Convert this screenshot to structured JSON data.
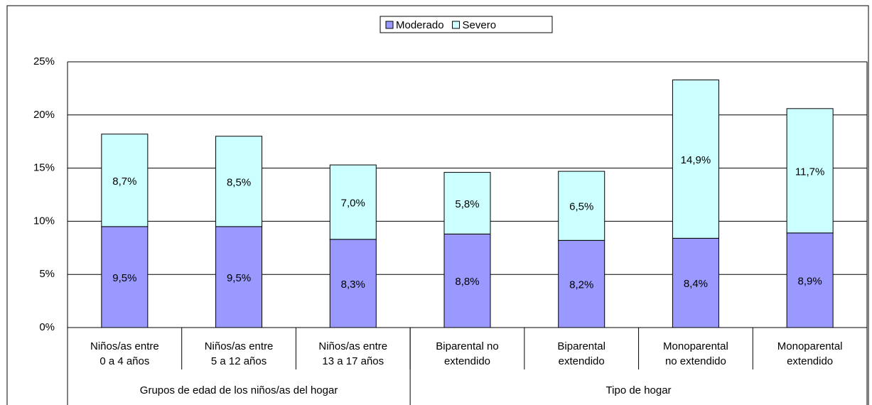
{
  "chart_data": {
    "type": "stacked_bar",
    "categories": [
      "Niños/as entre\n0 a 4 años",
      "Niños/as entre\n5 a 12 años",
      "Niños/as entre\n13 a 17 años",
      "Biparental no\nextendido",
      "Biparental\nextendido",
      "Monoparental\nno extendido",
      "Monoparental\nextendido"
    ],
    "groups": [
      {
        "name": "Grupos de edad de los niños/as del hogar",
        "span": [
          0,
          2
        ]
      },
      {
        "name": "Tipo de hogar",
        "span": [
          3,
          6
        ]
      }
    ],
    "series": [
      {
        "name": "Moderado",
        "color": "#9999ff",
        "values": [
          9.5,
          9.5,
          8.3,
          8.8,
          8.2,
          8.4,
          8.9
        ],
        "value_labels": [
          "9,5%",
          "9,5%",
          "8,3%",
          "8,8%",
          "8,2%",
          "8,4%",
          "8,9%"
        ]
      },
      {
        "name": "Severo",
        "color": "#ccffff",
        "values": [
          8.7,
          8.5,
          7.0,
          5.8,
          6.5,
          14.9,
          11.7
        ],
        "value_labels": [
          "8,7%",
          "8,5%",
          "7,0%",
          "5,8%",
          "6,5%",
          "14,9%",
          "11,7%"
        ]
      }
    ],
    "ylim": [
      0,
      25
    ],
    "yticks": [
      {
        "value": 0,
        "label": "0%"
      },
      {
        "value": 5,
        "label": "5%"
      },
      {
        "value": 10,
        "label": "10%"
      },
      {
        "value": 15,
        "label": "15%"
      },
      {
        "value": 20,
        "label": "20%"
      },
      {
        "value": 25,
        "label": "25%"
      }
    ],
    "grid": true,
    "legend": "top"
  }
}
